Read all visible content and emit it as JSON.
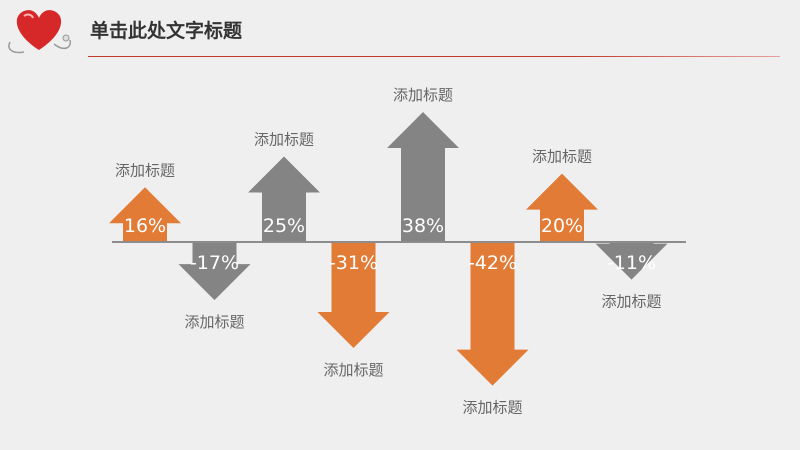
{
  "slide": {
    "title": "单击此处文字标题"
  },
  "colors": {
    "positive_orange": "#e27b35",
    "gray": "#848484",
    "baseline": "#8c8c8c",
    "accent_red": "#c0392b"
  },
  "chart_data": {
    "type": "bar",
    "title": "",
    "xlabel": "",
    "ylabel": "",
    "categories": [
      "添加标题",
      "添加标题",
      "添加标题",
      "添加标题",
      "添加标题",
      "添加标题",
      "添加标题",
      "添加标题"
    ],
    "values": [
      16,
      -17,
      25,
      -31,
      38,
      -42,
      20,
      -11
    ],
    "value_labels": [
      "16%",
      "-17%",
      "25%",
      "-31%",
      "38%",
      "-42%",
      "20%",
      "-11%"
    ],
    "bar_colors": [
      "#e27b35",
      "#848484",
      "#848484",
      "#e27b35",
      "#848484",
      "#e27b35",
      "#e27b35",
      "#848484"
    ],
    "shape": "arrow",
    "ylim": [
      -42,
      38
    ],
    "grid": false,
    "legend": "none"
  }
}
